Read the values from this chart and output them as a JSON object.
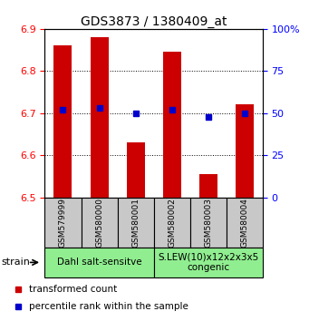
{
  "title": "GDS3873 / 1380409_at",
  "samples": [
    "GSM579999",
    "GSM580000",
    "GSM580001",
    "GSM580002",
    "GSM580003",
    "GSM580004"
  ],
  "bar_values": [
    6.86,
    6.88,
    6.63,
    6.845,
    6.555,
    6.72
  ],
  "percentile_values": [
    52,
    53,
    50,
    52,
    48,
    50
  ],
  "bar_color": "#cc0000",
  "percentile_color": "#0000cc",
  "ylim_left": [
    6.5,
    6.9
  ],
  "ylim_right": [
    0,
    100
  ],
  "yticks_left": [
    6.5,
    6.6,
    6.7,
    6.8,
    6.9
  ],
  "yticks_right": [
    0,
    25,
    50,
    75,
    100
  ],
  "group1_label": "Dahl salt-sensitve",
  "group2_label": "S.LEW(10)x12x2x3x5\ncongenic",
  "group1_color": "#90ee90",
  "group2_color": "#90ee90",
  "sample_box_color": "#c8c8c8",
  "legend_items": [
    "transformed count",
    "percentile rank within the sample"
  ],
  "legend_colors": [
    "#cc0000",
    "#0000cc"
  ],
  "strain_label": "strain",
  "bar_width": 0.5
}
